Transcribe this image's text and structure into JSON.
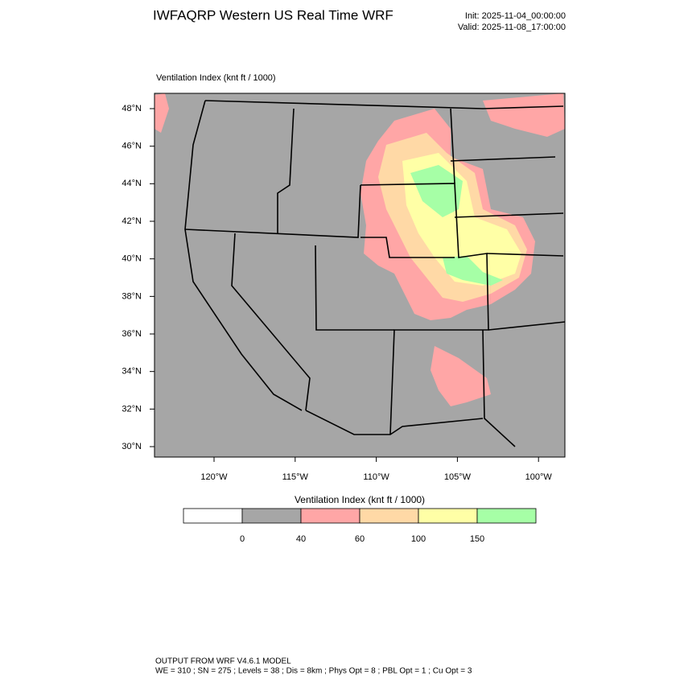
{
  "header": {
    "title": "IWFAQRP Western US Real Time WRF",
    "init": "Init: 2025-11-04_00:00:00",
    "valid": "Valid: 2025-11-08_17:00:00"
  },
  "map": {
    "title": "Ventilation Index   (knt ft / 1000)",
    "lat_labels": [
      "48°N",
      "46°N",
      "44°N",
      "42°N",
      "40°N",
      "38°N",
      "36°N",
      "34°N",
      "32°N",
      "30°N"
    ],
    "lon_labels": [
      "120°W",
      "115°W",
      "110°W",
      "105°W",
      "100°W"
    ]
  },
  "colorbar": {
    "title": "Ventilation Index  (knt ft / 1000)",
    "colors": [
      "#ffffff",
      "#a6a6a6",
      "#ffa6a6",
      "#ffd9a6",
      "#ffffa6",
      "#a6ffa6"
    ],
    "labels": [
      "0",
      "40",
      "60",
      "100",
      "150"
    ]
  },
  "footer": {
    "line1": "OUTPUT FROM WRF V4.6.1 MODEL",
    "line2": "WE = 310 ; SN = 275 ; Levels = 38 ; Dis = 8km ; Phys Opt = 8 ; PBL Opt = 1 ; Cu Opt = 3"
  }
}
